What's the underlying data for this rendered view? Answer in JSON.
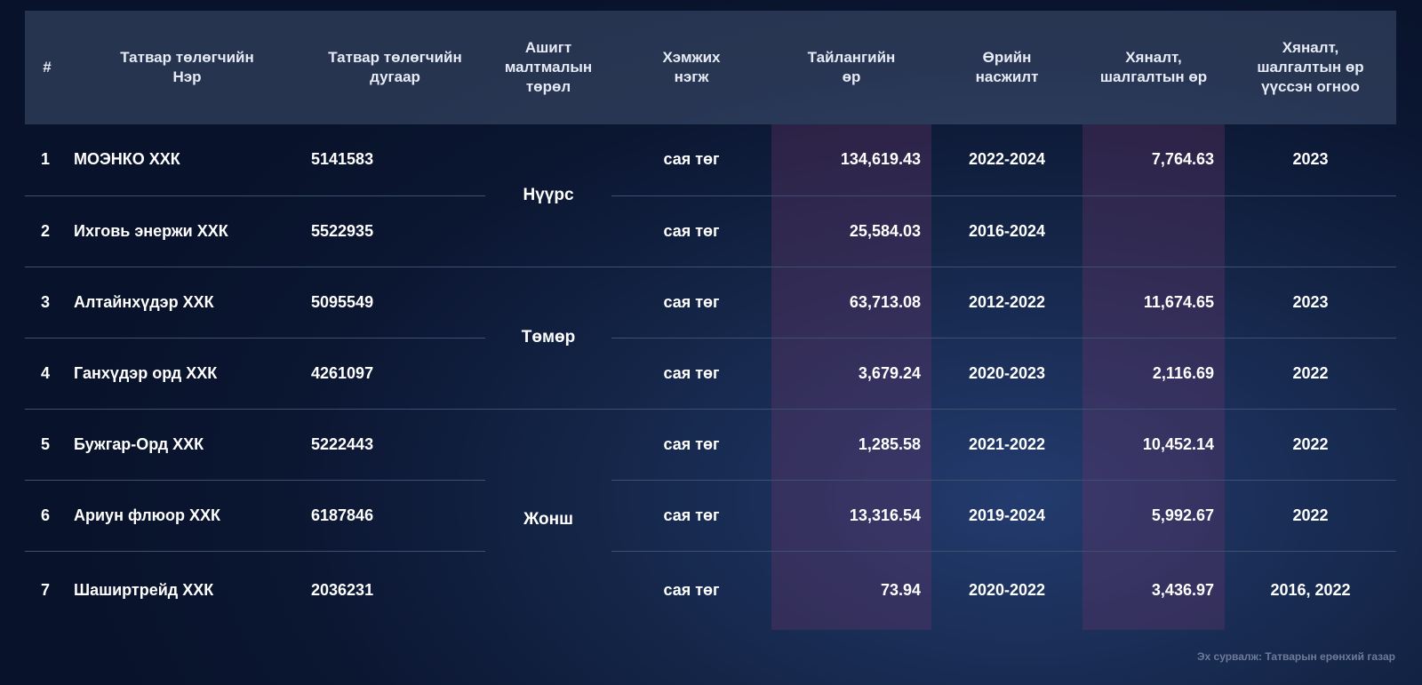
{
  "headers": {
    "num": "#",
    "name_l1": "Татвар төлөгчийн",
    "name_l2": "Нэр",
    "tin_l1": "Татвар төлөгчийн",
    "tin_l2": "дугаар",
    "mineral_l1": "Ашигт",
    "mineral_l2": "малтмалын",
    "mineral_l3": "төрөл",
    "unit_l1": "Хэмжих",
    "unit_l2": "нэгж",
    "amount_l1": "Тайлангийн",
    "amount_l2": "өр",
    "period_l1": "Өрийн",
    "period_l2": "насжилт",
    "inspection_l1": "Хяналт,",
    "inspection_l2": "шалгалтын өр",
    "year_l1": "Хяналт,",
    "year_l2": "шалгалтын өр",
    "year_l3": "үүссэн огноо"
  },
  "minerals": [
    "Нүүрс",
    "Төмөр",
    "Жонш"
  ],
  "rows": [
    {
      "num": "1",
      "name": "МОЭНКО ХХК",
      "tin": "5141583",
      "unit": "сая төг",
      "amount": "134,619.43",
      "period": "2022-2024",
      "inspection": "7,764.63",
      "year": "2023"
    },
    {
      "num": "2",
      "name": "Ихговь энержи ХХК",
      "tin": "5522935",
      "unit": "сая төг",
      "amount": "25,584.03",
      "period": "2016-2024",
      "inspection": "",
      "year": ""
    },
    {
      "num": "3",
      "name": "Алтайнхүдэр ХХК",
      "tin": "5095549",
      "unit": "сая төг",
      "amount": "63,713.08",
      "period": "2012-2022",
      "inspection": "11,674.65",
      "year": "2023"
    },
    {
      "num": "4",
      "name": "Ганхүдэр орд ХХК",
      "tin": "4261097",
      "unit": "сая төг",
      "amount": "3,679.24",
      "period": "2020-2023",
      "inspection": "2,116.69",
      "year": "2022"
    },
    {
      "num": "5",
      "name": "Бужгар-Орд ХХК",
      "tin": "5222443",
      "unit": "сая төг",
      "amount": "1,285.58",
      "period": "2021-2022",
      "inspection": "10,452.14",
      "year": "2022"
    },
    {
      "num": "6",
      "name": "Ариун флюор ХХК",
      "tin": "6187846",
      "unit": "сая төг",
      "amount": "13,316.54",
      "period": "2019-2024",
      "inspection": "5,992.67",
      "year": "2022"
    },
    {
      "num": "7",
      "name": "Шаширтрейд ХХК",
      "tin": "2036231",
      "unit": "сая төг",
      "amount": "73.94",
      "period": "2020-2022",
      "inspection": "3,436.97",
      "year": "2016, 2022"
    }
  ],
  "source": "Эх сурвалж: Татварын ерөнхий газар"
}
